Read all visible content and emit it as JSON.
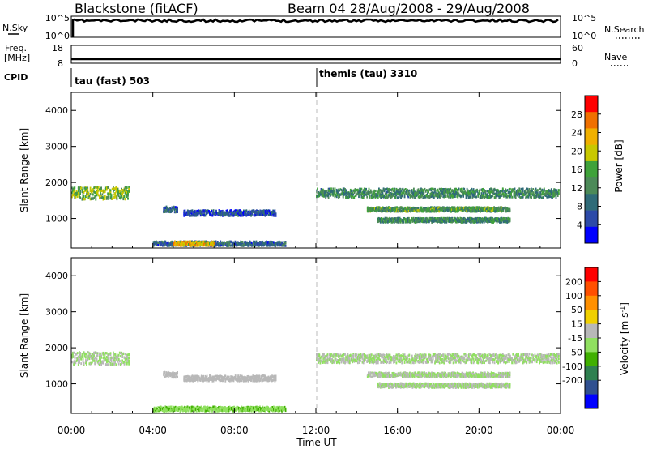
{
  "header": {
    "station": "Blackstone (fitACF)",
    "beam_date": "Beam 04  28/Aug/2008 - 29/Aug/2008"
  },
  "strip_noise": {
    "left_label": "N.Sky",
    "right_label": "N.Search",
    "left_ticks": [
      "10^5",
      "10^0"
    ],
    "right_ticks": [
      "10^5",
      "10^0"
    ]
  },
  "strip_freq": {
    "left_label_1": "Freq.",
    "left_label_2": "[MHz]",
    "right_label": "Nave",
    "left_ticks": [
      "18",
      "8"
    ],
    "right_ticks": [
      "60",
      "0"
    ]
  },
  "strip_cpid": {
    "label": "CPID",
    "segments": [
      {
        "text": "tau (fast) 503",
        "start": "00:00"
      },
      {
        "text": "themis (tau) 3310",
        "start": "12:00"
      }
    ]
  },
  "x_axis": {
    "label": "Time UT",
    "ticks": [
      "00:00",
      "04:00",
      "08:00",
      "12:00",
      "16:00",
      "20:00",
      "00:00"
    ]
  },
  "colors": {
    "power": [
      "#0000ff",
      "#2c4aa8",
      "#2f6b78",
      "#4c8a58",
      "#3fa23a",
      "#c8c800",
      "#f0b000",
      "#f07000",
      "#ff0000"
    ],
    "velocity": [
      "#ff0000",
      "#ff5000",
      "#ff9000",
      "#f0d000",
      "#b8b8b8",
      "#90e060",
      "#40b000",
      "#2f8050",
      "#305090",
      "#0000ff"
    ]
  },
  "chart_data": [
    {
      "type": "heatmap",
      "name": "power",
      "ylabel": "Slant Range [km]",
      "ylim": [
        180,
        4500
      ],
      "yticks": [
        "1000",
        "2000",
        "3000",
        "4000"
      ],
      "xlim_hours": [
        0,
        24
      ],
      "colorbar_label": "Power [dB]",
      "colorbar_ticks": [
        "4",
        "8",
        "12",
        "16",
        "20",
        "24",
        "28"
      ],
      "clim": [
        0,
        32
      ],
      "regions": [
        {
          "t": [
            0.0,
            2.8
          ],
          "range_center": 1700,
          "range_width": 350,
          "value": 16
        },
        {
          "t": [
            4.5,
            5.2
          ],
          "range_center": 1250,
          "range_width": 150,
          "value": 8
        },
        {
          "t": [
            5.5,
            10.0
          ],
          "range_center": 1150,
          "range_width": 150,
          "value": 6
        },
        {
          "t": [
            4.0,
            10.5
          ],
          "range_center": 300,
          "range_width": 120,
          "value": 8
        },
        {
          "t": [
            5.0,
            7.0
          ],
          "range_center": 300,
          "range_width": 120,
          "value": 22
        },
        {
          "t": [
            12.0,
            23.9
          ],
          "range_center": 1700,
          "range_width": 250,
          "value": 12
        },
        {
          "t": [
            14.5,
            21.5
          ],
          "range_center": 1250,
          "range_width": 120,
          "value": 14
        },
        {
          "t": [
            15.0,
            21.5
          ],
          "range_center": 950,
          "range_width": 120,
          "value": 12
        }
      ]
    },
    {
      "type": "heatmap",
      "name": "velocity",
      "ylabel": "Slant Range [km]",
      "ylim": [
        180,
        4500
      ],
      "yticks": [
        "1000",
        "2000",
        "3000",
        "4000"
      ],
      "xlim_hours": [
        0,
        24
      ],
      "colorbar_label": "Velocity [m s^-1]",
      "colorbar_ticks": [
        "200",
        "100",
        "50",
        "15",
        "-15",
        "-50",
        "-100",
        "-200"
      ],
      "clim": [
        -250,
        250
      ],
      "regions": [
        {
          "t": [
            0.0,
            2.8
          ],
          "range_center": 1700,
          "range_width": 350,
          "value": 0
        },
        {
          "t": [
            4.5,
            5.2
          ],
          "range_center": 1250,
          "range_width": 150,
          "value": 30
        },
        {
          "t": [
            5.5,
            10.0
          ],
          "range_center": 1150,
          "range_width": 150,
          "value": 30
        },
        {
          "t": [
            4.0,
            10.5
          ],
          "range_center": 300,
          "range_width": 120,
          "value": -40
        },
        {
          "t": [
            12.0,
            23.9
          ],
          "range_center": 1700,
          "range_width": 250,
          "value": 0
        },
        {
          "t": [
            14.5,
            21.5
          ],
          "range_center": 1250,
          "range_width": 120,
          "value": 0
        },
        {
          "t": [
            15.0,
            21.5
          ],
          "range_center": 950,
          "range_width": 120,
          "value": 0
        }
      ]
    }
  ]
}
